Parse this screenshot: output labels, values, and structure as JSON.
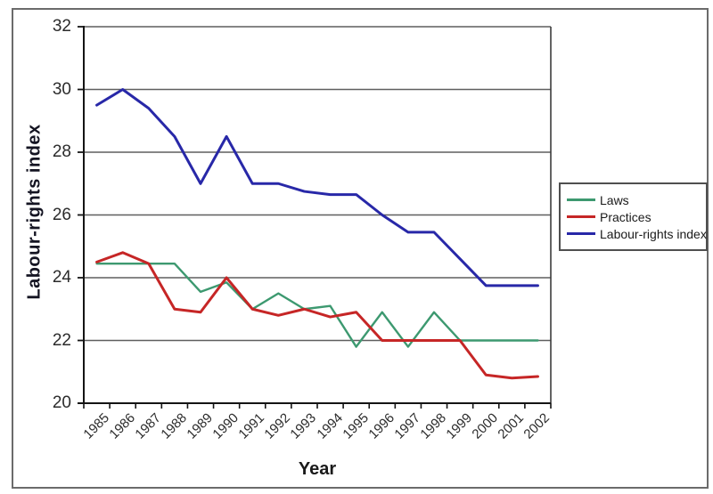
{
  "chart_data": {
    "type": "line",
    "title": "",
    "xlabel": "Year",
    "ylabel": "Labour-rights index",
    "ylim": [
      20,
      32
    ],
    "yticks": [
      20,
      22,
      24,
      26,
      28,
      30,
      32
    ],
    "grid": "horizontal",
    "legend_position": "right",
    "categories": [
      "1985",
      "1986",
      "1987",
      "1988",
      "1989",
      "1990",
      "1991",
      "1992",
      "1993",
      "1994",
      "1995",
      "1996",
      "1997",
      "1998",
      "1999",
      "2000",
      "2001",
      "2002"
    ],
    "series": [
      {
        "name": "Laws",
        "color": "#3d9970",
        "values": [
          24.45,
          24.45,
          24.45,
          24.45,
          23.55,
          23.85,
          23.0,
          23.5,
          23.0,
          23.1,
          21.8,
          22.9,
          21.8,
          22.9,
          22.0,
          22.0,
          22.0,
          22.0
        ]
      },
      {
        "name": "Practices",
        "color": "#c62626",
        "values": [
          24.5,
          24.8,
          24.45,
          23.0,
          22.9,
          24.0,
          23.0,
          22.8,
          23.0,
          22.75,
          22.9,
          22.0,
          22.0,
          22.0,
          22.0,
          20.9,
          20.8,
          20.85
        ]
      },
      {
        "name": "Labour-rights index",
        "color": "#2828a8",
        "values": [
          29.5,
          30.0,
          29.4,
          28.5,
          27.0,
          28.5,
          27.0,
          27.0,
          26.75,
          26.65,
          26.65,
          26.0,
          25.45,
          25.45,
          24.6,
          23.75,
          23.75,
          23.75
        ]
      }
    ]
  }
}
